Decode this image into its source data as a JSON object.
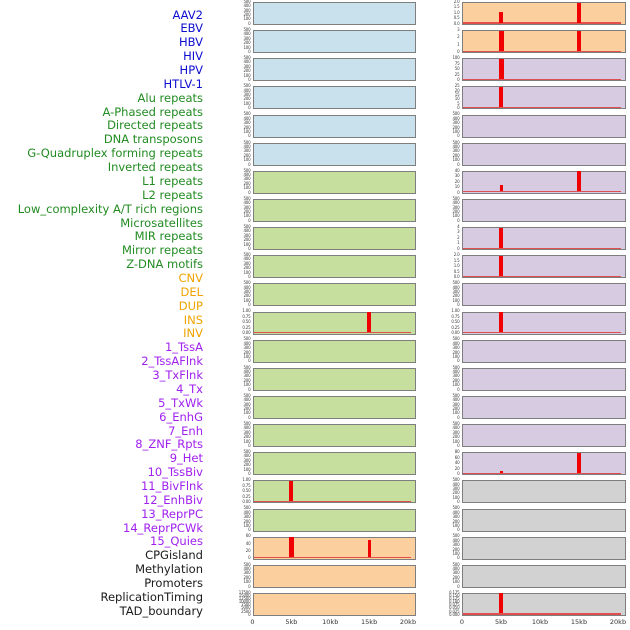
{
  "figure_title": "",
  "x_axis": {
    "tick_labels": [
      "0",
      "5kb",
      "10kb",
      "15kb",
      "20kb"
    ],
    "unit": "kb",
    "range_kb": [
      0,
      21
    ]
  },
  "colors": {
    "spike": "#f00000",
    "baseline": "#e04040",
    "panel_border": "#7e7e7e",
    "label_colors": {
      "virus": "#0d0dd0",
      "repeats": "#228b22",
      "structural_variant": "#f0a300",
      "chromatin_state": "#a020f0",
      "other": "#1a1a1a"
    },
    "panel_colors": {
      "virus": "#c8e1ec",
      "repeats": "#c6df9e",
      "structural_variant": "#fbcf9e",
      "chromatin_state": "#d7cbe2",
      "other": "#d2d2d2"
    }
  },
  "chart_data": {
    "type": "bar",
    "title": "",
    "layout": "small multiples: 22 rows x 2 columns; 44 tracks over a 0-20kb window; labels listed down left side",
    "x_ticks_kb": [
      0,
      5,
      10,
      15,
      20
    ],
    "left_column": [
      {
        "label": "AAV2",
        "category": "virus",
        "yticks": [
          "500",
          "400",
          "300",
          "200",
          "100",
          "0"
        ],
        "baseline": false,
        "spikes": []
      },
      {
        "label": "EBV",
        "category": "virus",
        "yticks": [
          "500",
          "400",
          "300",
          "200",
          "100",
          "0"
        ],
        "baseline": false,
        "spikes": []
      },
      {
        "label": "HBV",
        "category": "virus",
        "yticks": [
          "500",
          "400",
          "300",
          "200",
          "100",
          "0"
        ],
        "baseline": false,
        "spikes": []
      },
      {
        "label": "HIV",
        "category": "virus",
        "yticks": [
          "500",
          "400",
          "300",
          "200",
          "100",
          "0"
        ],
        "baseline": false,
        "spikes": []
      },
      {
        "label": "HPV",
        "category": "virus",
        "yticks": [
          "500",
          "400",
          "300",
          "200",
          "100",
          "0"
        ],
        "baseline": false,
        "spikes": []
      },
      {
        "label": "HTLV-1",
        "category": "virus",
        "yticks": [
          "500",
          "400",
          "300",
          "200",
          "100",
          "0"
        ],
        "baseline": false,
        "spikes": []
      },
      {
        "label": "Alu repeats",
        "category": "repeats",
        "yticks": [
          "500",
          "400",
          "300",
          "200",
          "100",
          "0"
        ],
        "baseline": false,
        "spikes": []
      },
      {
        "label": "A-Phased repeats",
        "category": "repeats",
        "yticks": [
          "500",
          "400",
          "300",
          "200",
          "100",
          "0"
        ],
        "baseline": false,
        "spikes": []
      },
      {
        "label": "Directed repeats",
        "category": "repeats",
        "yticks": [
          "500",
          "400",
          "300",
          "200",
          "100",
          "0"
        ],
        "baseline": false,
        "spikes": []
      },
      {
        "label": "DNA transposons",
        "category": "repeats",
        "yticks": [
          "500",
          "400",
          "300",
          "200",
          "100",
          "0"
        ],
        "baseline": false,
        "spikes": []
      },
      {
        "label": "G-Quadruplex forming repeats",
        "category": "repeats",
        "yticks": [
          "500",
          "400",
          "300",
          "200",
          "100",
          "0"
        ],
        "baseline": false,
        "spikes": []
      },
      {
        "label": "Inverted repeats",
        "category": "repeats",
        "yticks": [
          "1.00",
          "0.75",
          "0.50",
          "0.25",
          "0.00"
        ],
        "baseline": true,
        "spikes": [
          {
            "x_kb": 15,
            "frac": 1.0,
            "value": "1.00",
            "w": 4
          }
        ]
      },
      {
        "label": "L1 repeats",
        "category": "repeats",
        "yticks": [
          "500",
          "400",
          "300",
          "200",
          "100",
          "0"
        ],
        "baseline": false,
        "spikes": []
      },
      {
        "label": "L2 repeats",
        "category": "repeats",
        "yticks": [
          "500",
          "400",
          "300",
          "200",
          "100",
          "0"
        ],
        "baseline": false,
        "spikes": []
      },
      {
        "label": "Low_complexity A/T rich regions",
        "category": "repeats",
        "yticks": [
          "500",
          "400",
          "300",
          "200",
          "100",
          "0"
        ],
        "baseline": false,
        "spikes": []
      },
      {
        "label": "Microsatellites",
        "category": "repeats",
        "yticks": [
          "500",
          "400",
          "300",
          "200",
          "100",
          "0"
        ],
        "baseline": false,
        "spikes": []
      },
      {
        "label": "MIR repeats",
        "category": "repeats",
        "yticks": [
          "500",
          "400",
          "300",
          "200",
          "100",
          "0"
        ],
        "baseline": false,
        "spikes": []
      },
      {
        "label": "Mirror repeats",
        "category": "repeats",
        "yticks": [
          "1.00",
          "0.75",
          "0.50",
          "0.25",
          "0.00"
        ],
        "baseline": true,
        "spikes": [
          {
            "x_kb": 5,
            "frac": 1.0,
            "value": "1.00",
            "w": 4
          }
        ]
      },
      {
        "label": "Z-DNA motifs",
        "category": "repeats",
        "yticks": [
          "500",
          "400",
          "300",
          "200",
          "100",
          "0"
        ],
        "baseline": false,
        "spikes": []
      },
      {
        "label": "CNV",
        "category": "structural_variant",
        "yticks": [
          "60",
          "40",
          "20",
          "0"
        ],
        "baseline": true,
        "spikes": [
          {
            "x_kb": 5,
            "frac": 1.0,
            "value": "65",
            "w": 5
          },
          {
            "x_kb": 15,
            "frac": 0.85,
            "value": "55",
            "w": 3
          }
        ]
      },
      {
        "label": "DEL",
        "category": "structural_variant",
        "yticks": [
          "500",
          "400",
          "300",
          "200",
          "100",
          "0"
        ],
        "baseline": false,
        "spikes": []
      },
      {
        "label": "DUP",
        "category": "structural_variant",
        "yticks": [
          "17500",
          "15000",
          "12500",
          "10000",
          "7500",
          "5000",
          "2500",
          "0"
        ],
        "baseline": false,
        "spikes": []
      }
    ],
    "right_column": [
      {
        "label": "INS",
        "category": "structural_variant",
        "yticks": [
          "2.0",
          "1.5",
          "1.0",
          "0.5",
          "0.0"
        ],
        "baseline": true,
        "spikes": [
          {
            "x_kb": 5,
            "frac": 0.55,
            "value": "1.1",
            "w": 4
          },
          {
            "x_kb": 15,
            "frac": 1.0,
            "value": "2.0",
            "w": 4
          }
        ]
      },
      {
        "label": "INV",
        "category": "structural_variant",
        "yticks": [
          "3",
          "2",
          "1",
          "0"
        ],
        "baseline": true,
        "spikes": [
          {
            "x_kb": 5,
            "frac": 1.0,
            "value": "3",
            "w": 5
          },
          {
            "x_kb": 15,
            "frac": 0.97,
            "value": "2.9",
            "w": 4
          }
        ]
      },
      {
        "label": "1_TssA",
        "category": "chromatin_state",
        "yticks": [
          "100",
          "75",
          "50",
          "25",
          "0"
        ],
        "baseline": true,
        "spikes": [
          {
            "x_kb": 5,
            "frac": 1.0,
            "value": "100",
            "w": 5
          }
        ]
      },
      {
        "label": "2_TssAFlnk",
        "category": "chromatin_state",
        "yticks": [
          "25",
          "20",
          "15",
          "10",
          "5",
          "0"
        ],
        "baseline": true,
        "spikes": [
          {
            "x_kb": 5,
            "frac": 1.0,
            "value": "25",
            "w": 4
          }
        ]
      },
      {
        "label": "3_TxFlnk",
        "category": "chromatin_state",
        "yticks": [
          "500",
          "400",
          "300",
          "200",
          "100",
          "0"
        ],
        "baseline": false,
        "spikes": []
      },
      {
        "label": "4_Tx",
        "category": "chromatin_state",
        "yticks": [
          "500",
          "400",
          "300",
          "200",
          "100",
          "0"
        ],
        "baseline": false,
        "spikes": []
      },
      {
        "label": "5_TxWk",
        "category": "chromatin_state",
        "yticks": [
          "40",
          "30",
          "20",
          "10",
          "0"
        ],
        "baseline": true,
        "spikes": [
          {
            "x_kb": 5,
            "frac": 0.3,
            "value": "12",
            "w": 3
          },
          {
            "x_kb": 15,
            "frac": 1.0,
            "value": "40",
            "w": 4
          }
        ]
      },
      {
        "label": "6_EnhG",
        "category": "chromatin_state",
        "yticks": [
          "500",
          "400",
          "300",
          "200",
          "100",
          "0"
        ],
        "baseline": false,
        "spikes": []
      },
      {
        "label": "7_Enh",
        "category": "chromatin_state",
        "yticks": [
          "4",
          "3",
          "2",
          "1",
          "0"
        ],
        "baseline": true,
        "spikes": [
          {
            "x_kb": 5,
            "frac": 1.0,
            "value": "4",
            "w": 4
          }
        ]
      },
      {
        "label": "8_ZNF_Rpts",
        "category": "chromatin_state",
        "yticks": [
          "2.0",
          "1.5",
          "1.0",
          "0.5",
          "0.0"
        ],
        "baseline": true,
        "spikes": [
          {
            "x_kb": 5,
            "frac": 1.0,
            "value": "2.0",
            "w": 4
          }
        ]
      },
      {
        "label": "9_Het",
        "category": "chromatin_state",
        "yticks": [
          "500",
          "400",
          "300",
          "200",
          "100",
          "0"
        ],
        "baseline": false,
        "spikes": []
      },
      {
        "label": "10_TssBiv",
        "category": "chromatin_state",
        "yticks": [
          "1.00",
          "0.75",
          "0.50",
          "0.25",
          "0.00"
        ],
        "baseline": true,
        "spikes": [
          {
            "x_kb": 5,
            "frac": 1.0,
            "value": "1.00",
            "w": 4
          }
        ]
      },
      {
        "label": "11_BivFlnk",
        "category": "chromatin_state",
        "yticks": [
          "500",
          "400",
          "300",
          "200",
          "100",
          "0"
        ],
        "baseline": false,
        "spikes": []
      },
      {
        "label": "12_EnhBiv",
        "category": "chromatin_state",
        "yticks": [
          "500",
          "400",
          "300",
          "200",
          "100",
          "0"
        ],
        "baseline": false,
        "spikes": []
      },
      {
        "label": "13_ReprPC",
        "category": "chromatin_state",
        "yticks": [
          "500",
          "400",
          "300",
          "200",
          "100",
          "0"
        ],
        "baseline": false,
        "spikes": []
      },
      {
        "label": "14_ReprPCWk",
        "category": "chromatin_state",
        "yticks": [
          "500",
          "400",
          "300",
          "200",
          "100",
          "0"
        ],
        "baseline": false,
        "spikes": []
      },
      {
        "label": "15_Quies",
        "category": "chromatin_state",
        "yticks": [
          "80",
          "60",
          "40",
          "20",
          "0"
        ],
        "baseline": true,
        "spikes": [
          {
            "x_kb": 5,
            "frac": 0.1,
            "value": "8",
            "w": 3
          },
          {
            "x_kb": 15,
            "frac": 1.0,
            "value": "80",
            "w": 4
          }
        ]
      },
      {
        "label": "CPGisland",
        "category": "other",
        "yticks": [
          "500",
          "400",
          "300",
          "200",
          "100",
          "0"
        ],
        "baseline": false,
        "spikes": []
      },
      {
        "label": "Methylation",
        "category": "other",
        "yticks": [
          "500",
          "400",
          "300",
          "200",
          "100",
          "0"
        ],
        "baseline": false,
        "spikes": []
      },
      {
        "label": "Promoters",
        "category": "other",
        "yticks": [
          "500",
          "400",
          "300",
          "200",
          "100",
          "0"
        ],
        "baseline": false,
        "spikes": []
      },
      {
        "label": "ReplicationTiming",
        "category": "other",
        "yticks": [
          "500",
          "400",
          "300",
          "200",
          "100",
          "0"
        ],
        "baseline": false,
        "spikes": []
      },
      {
        "label": "TAD_boundary",
        "category": "other",
        "yticks": [
          "0.175",
          "0.150",
          "0.125",
          "0.100",
          "0.075",
          "0.050",
          "0.025",
          "0.000"
        ],
        "baseline": true,
        "spikes": [
          {
            "x_kb": 5,
            "frac": 1.0,
            "value": "",
            "w": 4
          }
        ]
      }
    ]
  }
}
